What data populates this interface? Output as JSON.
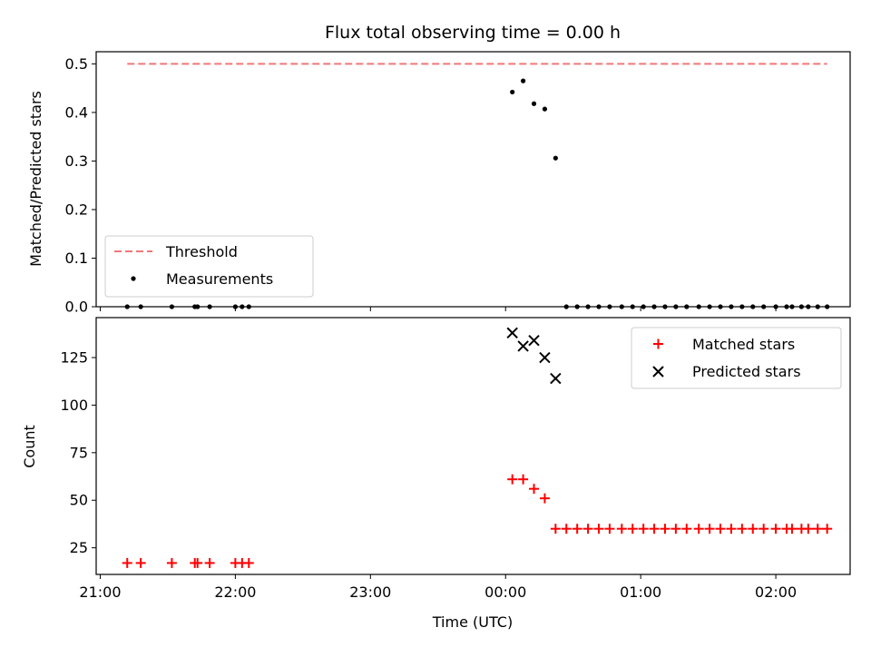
{
  "title": "Flux total observing time = 0.00 h",
  "colors": {
    "threshold": "#f07878",
    "measurements": "#000000",
    "matched": "#ff0000",
    "predicted": "#000000"
  },
  "chart_data": [
    {
      "type": "scatter",
      "xlabel": "",
      "ylabel": "Matched/Predicted stars",
      "x_unit": "hours after 21:00 UTC",
      "xlim": [
        -0.03,
        5.55
      ],
      "ylim": [
        0,
        0.525
      ],
      "y_ticks": [
        "0.0",
        "0.1",
        "0.2",
        "0.3",
        "0.4",
        "0.5"
      ],
      "x_ticks": [
        "21:00",
        "22:00",
        "23:00",
        "00:00",
        "01:00",
        "02:00"
      ],
      "legend": {
        "position": "lower-left",
        "entries": [
          "Threshold",
          "Measurements"
        ]
      },
      "series": [
        {
          "name": "Threshold",
          "kind": "line",
          "x": [
            0.2,
            5.38
          ],
          "y": [
            0.5,
            0.5
          ]
        },
        {
          "name": "Measurements",
          "kind": "points",
          "x": [
            0.2,
            0.3,
            0.53,
            0.7,
            0.72,
            0.81,
            1.0,
            1.05,
            1.1,
            3.05,
            3.13,
            3.21,
            3.29,
            3.37,
            3.45,
            3.53,
            3.61,
            3.69,
            3.77,
            3.86,
            3.94,
            4.02,
            4.1,
            4.18,
            4.26,
            4.34,
            4.43,
            4.51,
            4.59,
            4.67,
            4.75,
            4.83,
            4.91,
            5.0,
            5.08,
            5.12,
            5.19,
            5.24,
            5.31,
            5.38
          ],
          "y": [
            0,
            0,
            0,
            0,
            0,
            0,
            0,
            0,
            0,
            0.442,
            0.465,
            0.418,
            0.407,
            0.306,
            0,
            0,
            0,
            0,
            0,
            0,
            0,
            0,
            0,
            0,
            0,
            0,
            0,
            0,
            0,
            0,
            0,
            0,
            0,
            0,
            0,
            0,
            0,
            0,
            0,
            0
          ]
        }
      ]
    },
    {
      "type": "scatter",
      "xlabel": "Time (UTC)",
      "ylabel": "Count",
      "x_unit": "hours after 21:00 UTC",
      "xlim": [
        -0.03,
        5.55
      ],
      "ylim": [
        11,
        146
      ],
      "y_ticks": [
        "25",
        "50",
        "75",
        "100",
        "125"
      ],
      "x_ticks": [
        "21:00",
        "22:00",
        "23:00",
        "00:00",
        "01:00",
        "02:00"
      ],
      "legend": {
        "position": "top-right",
        "entries": [
          "Matched stars",
          "Predicted stars"
        ]
      },
      "series": [
        {
          "name": "Matched stars",
          "kind": "plus",
          "x": [
            0.2,
            0.3,
            0.53,
            0.7,
            0.72,
            0.81,
            1.0,
            1.05,
            1.1,
            3.05,
            3.13,
            3.21,
            3.29,
            3.37,
            3.45,
            3.53,
            3.61,
            3.69,
            3.77,
            3.86,
            3.94,
            4.02,
            4.1,
            4.18,
            4.26,
            4.34,
            4.43,
            4.51,
            4.59,
            4.67,
            4.75,
            4.83,
            4.91,
            5.0,
            5.08,
            5.12,
            5.19,
            5.24,
            5.31,
            5.38
          ],
          "y": [
            17,
            17,
            17,
            17,
            17,
            17,
            17,
            17,
            17,
            61,
            61,
            56,
            51,
            35,
            35,
            35,
            35,
            35,
            35,
            35,
            35,
            35,
            35,
            35,
            35,
            35,
            35,
            35,
            35,
            35,
            35,
            35,
            35,
            35,
            35,
            35,
            35,
            35,
            35,
            35
          ]
        },
        {
          "name": "Predicted stars",
          "kind": "x",
          "x": [
            3.05,
            3.13,
            3.21,
            3.29,
            3.37
          ],
          "y": [
            138,
            131,
            134,
            125,
            114
          ]
        }
      ]
    }
  ]
}
